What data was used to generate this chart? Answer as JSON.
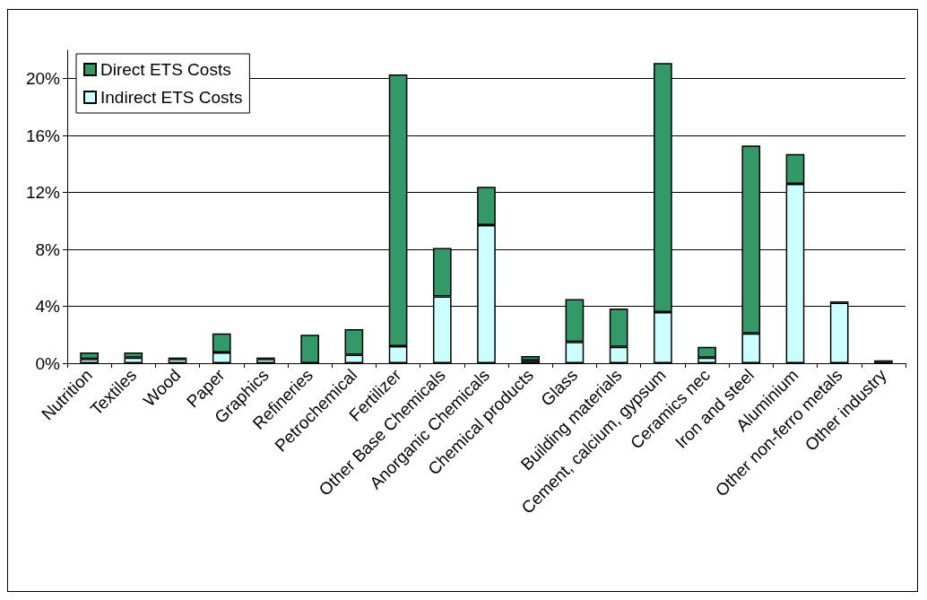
{
  "chart_data": {
    "type": "bar",
    "stacked": true,
    "categories": [
      "Nutrition",
      "Textiles",
      "Wood",
      "Paper",
      "Graphics",
      "Refineries",
      "Petrochemical",
      "Fertilizer",
      "Other Base Chemicals",
      "Anorganic Chemicals",
      "Chemical products",
      "Glass",
      "Building materials",
      "Cement, calcium, gypsum",
      "Ceramics nec",
      "Iron and steel",
      "Aluminium",
      "Other non-ferro metals",
      "Other industry"
    ],
    "series": [
      {
        "name": "Indirect ETS Costs",
        "color": "#ccffff",
        "values": [
          0.3,
          0.4,
          0.3,
          0.75,
          0.3,
          null,
          0.6,
          1.2,
          4.7,
          9.7,
          0.2,
          1.5,
          1.15,
          3.6,
          0.4,
          2.1,
          12.6,
          4.25,
          0.2
        ]
      },
      {
        "name": "Direct ETS Costs",
        "color": "#339966",
        "values": [
          0.45,
          0.35,
          0.1,
          1.35,
          0.1,
          2.0,
          1.8,
          19.1,
          3.4,
          2.7,
          0.3,
          3.0,
          2.7,
          17.5,
          0.75,
          13.2,
          2.1,
          0.1,
          null
        ]
      }
    ],
    "ylim": [
      0,
      22
    ],
    "yticks": [
      {
        "value": 0,
        "label": "0%"
      },
      {
        "value": 4,
        "label": "4%"
      },
      {
        "value": 8,
        "label": "8%"
      },
      {
        "value": 12,
        "label": "12%"
      },
      {
        "value": 16,
        "label": "16%"
      },
      {
        "value": 20,
        "label": "20%"
      }
    ],
    "grid": "y",
    "legend": "top left"
  }
}
